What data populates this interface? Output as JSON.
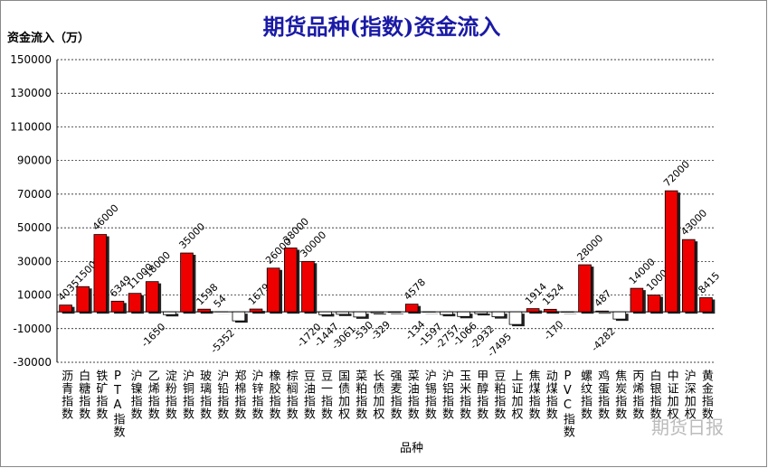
{
  "chart_data": {
    "type": "bar",
    "title": "期货品种(指数)资金流入",
    "y_label": "资金流入（万）",
    "x_label": "品种",
    "watermark": "期货日报",
    "color": "#ee0000",
    "categories": [
      "沥青指数",
      "白糖指数",
      "铁矿指数",
      "PTA指数",
      "沪镍指数",
      "乙烯指数",
      "淀粉指数",
      "沪铜指数",
      "玻璃指数",
      "沪铅指数",
      "郑棉指数",
      "沪锌指数",
      "橡胶指数",
      "棕榈指数",
      "豆油指数",
      "豆一指数",
      "国债加权",
      "菜粕指数",
      "长债加权",
      "强麦指数",
      "菜油指数",
      "沪锡指数",
      "沪铝指数",
      "玉米指数",
      "甲醇指数",
      "豆粕指数",
      "上证加权",
      "焦煤指数",
      "动煤指数",
      "PVC指数",
      "螺纹指数",
      "鸡蛋指数",
      "焦炭指数",
      "丙烯指数",
      "白银指数",
      "中证加权",
      "沪深加权",
      "黄金指数"
    ],
    "values": [
      4035,
      15000,
      46000,
      6349,
      11000,
      18000,
      -1650,
      35000,
      1598,
      54,
      -5352,
      1679,
      26000,
      38000,
      30000,
      -1720,
      -1447,
      -3061,
      -530,
      -329,
      4578,
      -134,
      -1597,
      -2757,
      -1066,
      -2932,
      -7495,
      1914,
      1524,
      -170,
      28000,
      487,
      -4282,
      14000,
      10000,
      72000,
      43000,
      8415
    ],
    "ylim": [
      -30000,
      150000
    ],
    "yticks": [
      -30000,
      -10000,
      10000,
      30000,
      50000,
      70000,
      90000,
      110000,
      130000,
      150000
    ],
    "grid": true
  }
}
